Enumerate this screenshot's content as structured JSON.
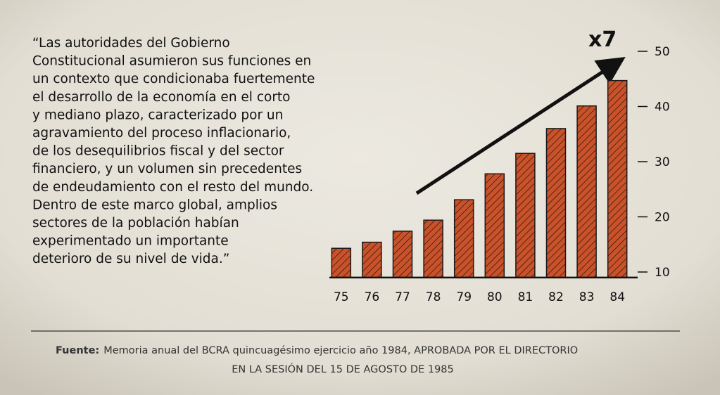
{
  "quote": {
    "lines": [
      "“Las autoridades del Gobierno",
      "Constitucional asumieron sus funciones en",
      "un contexto que condicionaba fuertemente",
      "el desarrollo de la economía en el corto",
      "y mediano plazo, caracterizado por un",
      "agravamiento del proceso inflacionario,",
      "de los desequilibrios fiscal y del sector",
      "financiero, y un volumen sin precedentes",
      "de endeudamiento con el resto del mundo.",
      "Dentro de este marco global, amplios",
      "sectores de la población habían",
      "experimentado un importante",
      "deterioro de su nivel de vida.”"
    ]
  },
  "chart_data": {
    "type": "bar",
    "annotation": "x7",
    "categories": [
      "75",
      "76",
      "77",
      "78",
      "79",
      "80",
      "81",
      "82",
      "83",
      "84"
    ],
    "values": [
      14.3,
      15.4,
      17.4,
      19.4,
      23.1,
      27.8,
      31.5,
      36.0,
      40.1,
      44.7
    ],
    "color": "#c9522a",
    "ylim": [
      9,
      52
    ],
    "yticks": [
      10,
      20,
      30,
      40,
      50
    ]
  },
  "source": {
    "label": "Fuente:",
    "lines": [
      "Memoria anual del BCRA quincuagésimo ejercicio año 1984, APROBADA POR EL DIRECTORIO",
      "EN LA SESIÓN DEL 15 DE AGOSTO DE 1985"
    ]
  }
}
